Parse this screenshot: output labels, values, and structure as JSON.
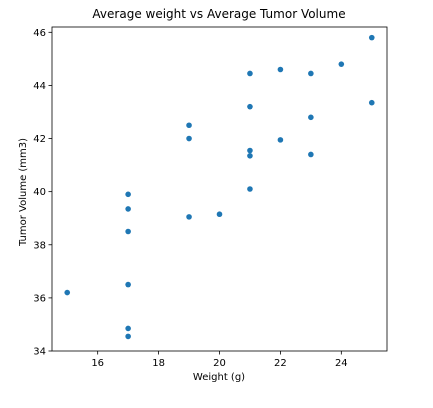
{
  "chart_data": {
    "type": "scatter",
    "title": "Average weight vs Average Tumor Volume",
    "xlabel": "Weight (g)",
    "ylabel": "Tumor Volume (mm3)",
    "xlim": [
      14.5,
      25.5
    ],
    "ylim": [
      34,
      46.2
    ],
    "xticks": [
      16,
      18,
      20,
      22,
      24
    ],
    "yticks": [
      34,
      36,
      38,
      40,
      42,
      44,
      46
    ],
    "grid": false,
    "marker_color": "#1f77b4",
    "points": [
      {
        "x": 15,
        "y": 36.2
      },
      {
        "x": 17,
        "y": 39.9
      },
      {
        "x": 17,
        "y": 39.35
      },
      {
        "x": 17,
        "y": 38.5
      },
      {
        "x": 17,
        "y": 36.5
      },
      {
        "x": 17,
        "y": 34.85
      },
      {
        "x": 17,
        "y": 34.55
      },
      {
        "x": 19,
        "y": 42.5
      },
      {
        "x": 19,
        "y": 42.0
      },
      {
        "x": 19,
        "y": 39.05
      },
      {
        "x": 20,
        "y": 39.15
      },
      {
        "x": 21,
        "y": 44.45
      },
      {
        "x": 21,
        "y": 43.2
      },
      {
        "x": 21,
        "y": 41.55
      },
      {
        "x": 21,
        "y": 41.35
      },
      {
        "x": 21,
        "y": 40.1
      },
      {
        "x": 22,
        "y": 44.6
      },
      {
        "x": 22,
        "y": 41.95
      },
      {
        "x": 23,
        "y": 44.45
      },
      {
        "x": 23,
        "y": 42.8
      },
      {
        "x": 23,
        "y": 41.4
      },
      {
        "x": 24,
        "y": 44.8
      },
      {
        "x": 25,
        "y": 45.8
      },
      {
        "x": 25,
        "y": 43.35
      }
    ]
  }
}
